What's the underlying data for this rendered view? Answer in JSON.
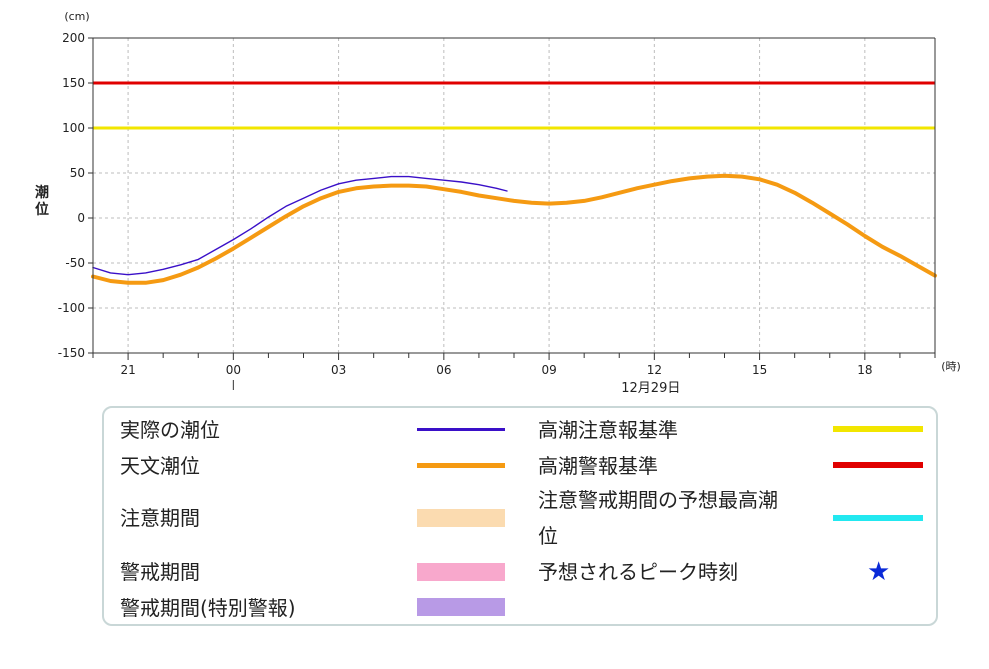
{
  "chart_data": {
    "type": "line",
    "title": "",
    "ylabel": "潮位",
    "yunit": "(cm)",
    "xunit": "(時)",
    "ylim": [
      -150,
      200
    ],
    "yticks": [
      200,
      150,
      100,
      50,
      0,
      -50,
      -100,
      -150
    ],
    "xlim_hours": [
      -4,
      20
    ],
    "xticks": [
      {
        "h": -3,
        "label": "21"
      },
      {
        "h": 0,
        "label": "00"
      },
      {
        "h": 3,
        "label": "03"
      },
      {
        "h": 6,
        "label": "06"
      },
      {
        "h": 9,
        "label": "09"
      },
      {
        "h": 12,
        "label": "12"
      },
      {
        "h": 15,
        "label": "15"
      },
      {
        "h": 18,
        "label": "18"
      }
    ],
    "date_label": "12月29日",
    "grid": true,
    "reference_lines": [
      {
        "name": "高潮警報基準",
        "value": 150,
        "color": "#e00000"
      },
      {
        "name": "高潮注意報基準",
        "value": 100,
        "color": "#f2e600"
      }
    ],
    "series": [
      {
        "name": "天文潮位",
        "color": "#f59a12",
        "x": [
          -4,
          -3.5,
          -3,
          -2.5,
          -2,
          -1.5,
          -1,
          -0.5,
          0,
          0.5,
          1,
          1.5,
          2,
          2.5,
          3,
          3.5,
          4,
          4.5,
          5,
          5.5,
          6,
          6.5,
          7,
          7.5,
          8,
          8.5,
          9,
          9.5,
          10,
          10.5,
          11,
          11.5,
          12,
          12.5,
          13,
          13.5,
          14,
          14.5,
          15,
          15.5,
          16,
          16.5,
          17,
          17.5,
          18,
          18.5,
          19,
          19.5,
          20
        ],
        "values": [
          -65,
          -70,
          -72,
          -72,
          -69,
          -63,
          -55,
          -45,
          -34,
          -22,
          -10,
          2,
          13,
          22,
          29,
          33,
          35,
          36,
          36,
          35,
          32,
          29,
          25,
          22,
          19,
          17,
          16,
          17,
          19,
          23,
          28,
          33,
          37,
          41,
          44,
          46,
          47,
          46,
          43,
          37,
          28,
          17,
          5,
          -7,
          -20,
          -32,
          -42,
          -53,
          -64
        ]
      },
      {
        "name": "実際の潮位",
        "color": "#3a10c8",
        "x": [
          -4,
          -3.5,
          -3,
          -2.5,
          -2,
          -1.5,
          -1,
          -0.5,
          0,
          0.5,
          1,
          1.5,
          2,
          2.5,
          3,
          3.5,
          4,
          4.5,
          5,
          5.5,
          6,
          6.5,
          7,
          7.5,
          7.8
        ],
        "values": [
          -55,
          -61,
          -63,
          -61,
          -57,
          -52,
          -46,
          -35,
          -24,
          -12,
          1,
          13,
          22,
          31,
          38,
          42,
          44,
          46,
          46,
          44,
          42,
          40,
          37,
          33,
          30
        ]
      }
    ]
  },
  "legend": {
    "items": [
      {
        "label": "実際の潮位",
        "kind": "line",
        "color": "#3a10c8"
      },
      {
        "label": "天文潮位",
        "kind": "line",
        "color": "#f59a12"
      },
      {
        "label": "注意期間",
        "kind": "block",
        "color": "#fbdbb0"
      },
      {
        "label": "警戒期間",
        "kind": "block",
        "color": "#f8a8cc"
      },
      {
        "label": "警戒期間(特別警報)",
        "kind": "block",
        "color": "#b89ae6"
      },
      {
        "label": "高潮注意報基準",
        "kind": "line",
        "color": "#f2e600"
      },
      {
        "label": "高潮警報基準",
        "kind": "line",
        "color": "#e00000"
      },
      {
        "label": "注意警戒期間の予想最高潮",
        "label2": "位",
        "kind": "line",
        "color": "#22e8f0"
      },
      {
        "label": "予想されるピーク時刻",
        "kind": "star",
        "color": "#0a2ad8",
        "symbol": "★"
      }
    ]
  }
}
